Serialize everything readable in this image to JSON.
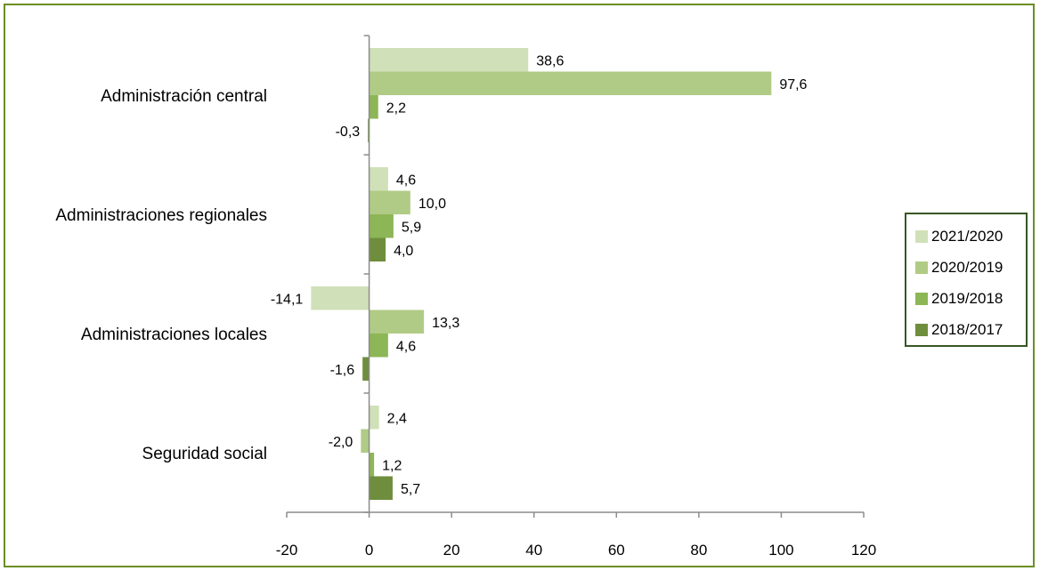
{
  "chart_data": {
    "type": "bar",
    "orientation": "horizontal",
    "categories": [
      "Administración central",
      "Administraciones regionales",
      "Administraciones locales",
      "Seguridad social"
    ],
    "series": [
      {
        "name": "2021/2020",
        "color": "#d0e0b8",
        "values": [
          38.6,
          4.6,
          -14.1,
          2.4
        ],
        "labels": [
          "38,6",
          "4,6",
          "-14,1",
          "2,4"
        ]
      },
      {
        "name": "2020/2019",
        "color": "#b0cb85",
        "values": [
          97.6,
          10.0,
          13.3,
          -2.0
        ],
        "labels": [
          "97,6",
          "10,0",
          "13,3",
          "-2,0"
        ]
      },
      {
        "name": "2019/2018",
        "color": "#8db656",
        "values": [
          2.2,
          5.9,
          4.6,
          1.2
        ],
        "labels": [
          "2,2",
          "5,9",
          "4,6",
          "1,2"
        ]
      },
      {
        "name": "2018/2017",
        "color": "#6f8e3d",
        "values": [
          -0.3,
          4.0,
          -1.6,
          5.7
        ],
        "labels": [
          "-0,3",
          "4,0",
          "-1,6",
          "5,7"
        ]
      }
    ],
    "xlim": [
      -20,
      120
    ],
    "xticks": [
      -20,
      0,
      20,
      40,
      60,
      80,
      100,
      120
    ],
    "xtick_labels": [
      "-20",
      "0",
      "20",
      "40",
      "60",
      "80",
      "100",
      "120"
    ],
    "legend_position": "right",
    "grid": false
  }
}
